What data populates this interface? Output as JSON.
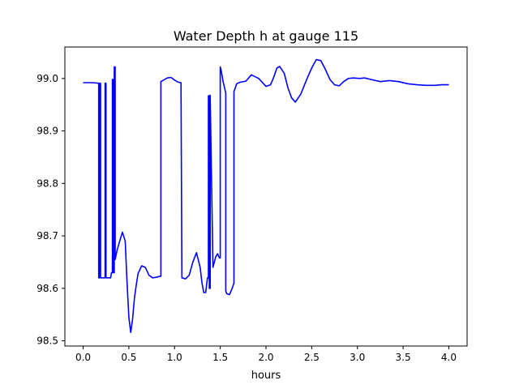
{
  "chart_data": {
    "type": "line",
    "title": "Water Depth h at gauge 115",
    "xlabel": "hours",
    "ylabel": "",
    "xlim": [
      -0.2,
      4.2
    ],
    "ylim": [
      98.49,
      99.06
    ],
    "grid": false,
    "legend": "none",
    "x_ticks": [
      0.0,
      0.5,
      1.0,
      1.5,
      2.0,
      2.5,
      3.0,
      3.5,
      4.0
    ],
    "x_tick_labels": [
      "0.0",
      "0.5",
      "1.0",
      "1.5",
      "2.0",
      "2.5",
      "3.0",
      "3.5",
      "4.0"
    ],
    "y_ticks": [
      98.5,
      98.6,
      98.7,
      98.8,
      98.9,
      99.0
    ],
    "y_tick_labels": [
      "98.5",
      "98.6",
      "98.7",
      "98.8",
      "98.9",
      "99.0"
    ],
    "colors": {
      "line": "#0000ff",
      "axes": "#000000",
      "background": "#ffffff"
    },
    "series": [
      {
        "x": [
          0.0,
          0.1,
          0.17,
          0.17,
          0.18,
          0.18,
          0.19,
          0.19,
          0.2,
          0.2,
          0.24,
          0.24,
          0.25,
          0.25,
          0.3,
          0.31,
          0.32,
          0.32,
          0.33,
          0.33,
          0.34,
          0.34,
          0.35,
          0.35,
          0.37,
          0.4,
          0.43,
          0.46,
          0.48,
          0.5,
          0.52,
          0.54,
          0.56,
          0.58,
          0.6,
          0.64,
          0.68,
          0.72,
          0.76,
          0.8,
          0.84,
          0.85,
          0.85,
          0.88,
          0.92,
          0.96,
          1.0,
          1.04,
          1.07,
          1.08,
          1.08,
          1.12,
          1.16,
          1.2,
          1.24,
          1.28,
          1.3,
          1.32,
          1.34,
          1.36,
          1.37,
          1.37,
          1.38,
          1.38,
          1.39,
          1.39,
          1.42,
          1.45,
          1.47,
          1.48,
          1.49,
          1.49,
          1.5,
          1.5,
          1.51,
          1.53,
          1.56,
          1.56,
          1.57,
          1.6,
          1.63,
          1.65,
          1.65,
          1.68,
          1.72,
          1.78,
          1.84,
          1.92,
          2.0,
          2.05,
          2.08,
          2.12,
          2.15,
          2.2,
          2.24,
          2.28,
          2.32,
          2.38,
          2.45,
          2.5,
          2.55,
          2.6,
          2.65,
          2.7,
          2.75,
          2.8,
          2.85,
          2.9,
          2.96,
          3.02,
          3.08,
          3.15,
          3.25,
          3.35,
          3.45,
          3.55,
          3.65,
          3.75,
          3.85,
          3.92,
          4.0
        ],
        "y": [
          98.992,
          98.992,
          98.991,
          98.62,
          98.62,
          98.991,
          98.991,
          98.62,
          98.62,
          98.62,
          98.62,
          98.991,
          98.991,
          98.62,
          98.62,
          98.63,
          98.63,
          98.998,
          98.998,
          98.63,
          98.63,
          99.022,
          99.022,
          98.655,
          98.672,
          98.69,
          98.707,
          98.69,
          98.61,
          98.545,
          98.516,
          98.54,
          98.58,
          98.605,
          98.628,
          98.643,
          98.64,
          98.625,
          98.62,
          98.621,
          98.623,
          98.623,
          98.994,
          98.997,
          99.001,
          99.002,
          98.997,
          98.993,
          98.992,
          98.62,
          98.62,
          98.618,
          98.625,
          98.65,
          98.668,
          98.64,
          98.61,
          98.592,
          98.592,
          98.62,
          98.62,
          98.967,
          98.967,
          98.6,
          98.6,
          98.968,
          98.64,
          98.66,
          98.666,
          98.662,
          98.658,
          98.658,
          98.658,
          99.022,
          99.015,
          98.995,
          98.972,
          98.595,
          98.59,
          98.588,
          98.6,
          98.61,
          98.975,
          98.99,
          98.993,
          98.995,
          99.007,
          99.0,
          98.985,
          98.988,
          99.0,
          99.02,
          99.023,
          99.01,
          98.982,
          98.963,
          98.955,
          98.97,
          99.0,
          99.02,
          99.036,
          99.034,
          99.017,
          98.998,
          98.988,
          98.986,
          98.994,
          99.0,
          99.001,
          99.0,
          99.001,
          98.998,
          98.994,
          98.996,
          98.994,
          98.99,
          98.988,
          98.987,
          98.987,
          98.988,
          98.988
        ]
      }
    ]
  }
}
